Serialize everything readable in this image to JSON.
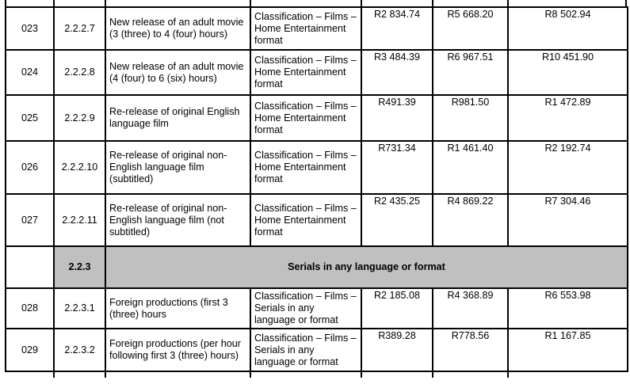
{
  "rows_before": [
    {
      "no": "023",
      "item": "2.2.2.7",
      "description": "New release of an adult movie (3 (three) to 4 (four) hours)",
      "category": "Classification – Films – Home Entertainment format",
      "fee1": "R2 834.74",
      "fee2": "R5 668.20",
      "fee3": "R8 502.94"
    },
    {
      "no": "024",
      "item": "2.2.2.8",
      "description": "New release of an adult movie (4 (four) to 6 (six) hours)",
      "category": "Classification – Films – Home Entertainment format",
      "fee1": "R3 484.39",
      "fee2": "R6 967.51",
      "fee3": "R10 451.90"
    },
    {
      "no": "025",
      "item": "2.2.2.9",
      "description": "Re-release of original English language film",
      "category": "Classification – Films – Home Entertainment format",
      "fee1": "R491.39",
      "fee2": "R981.50",
      "fee3": "R1 472.89"
    },
    {
      "no": "026",
      "item": "2.2.2.10",
      "description": "Re-release of original non-English language film (subtitled)",
      "category": "Classification – Films – Home Entertainment format",
      "fee1": "R731.34",
      "fee2": "R1 461.40",
      "fee3": "R2 192.74"
    },
    {
      "no": "027",
      "item": "2.2.2.11",
      "description": "Re-release of original non-English language film (not subtitled)",
      "category": "Classification – Films – Home Entertainment format",
      "fee1": "R2 435.25",
      "fee2": "R4 869.22",
      "fee3": "R7 304.46"
    }
  ],
  "section": {
    "item": "2.2.3",
    "title": "Serials in any language or format"
  },
  "rows_after": [
    {
      "no": "028",
      "item": "2.2.3.1",
      "description": "Foreign productions (first 3 (three) hours",
      "category": "Classification – Films – Serials in any language or format",
      "fee1": "R2 185.08",
      "fee2": "R4 368.89",
      "fee3": "R6 553.98"
    },
    {
      "no": "029",
      "item": "2.2.3.2",
      "description": "Foreign productions (per hour following first 3 (three) hours)",
      "category": "Classification – Films – Serials in any language or format",
      "fee1": "R389.28",
      "fee2": "R778.56",
      "fee3": "R1 167.85"
    }
  ],
  "colors": {
    "section_fill": "#c0c0c0",
    "border": "#000000"
  }
}
